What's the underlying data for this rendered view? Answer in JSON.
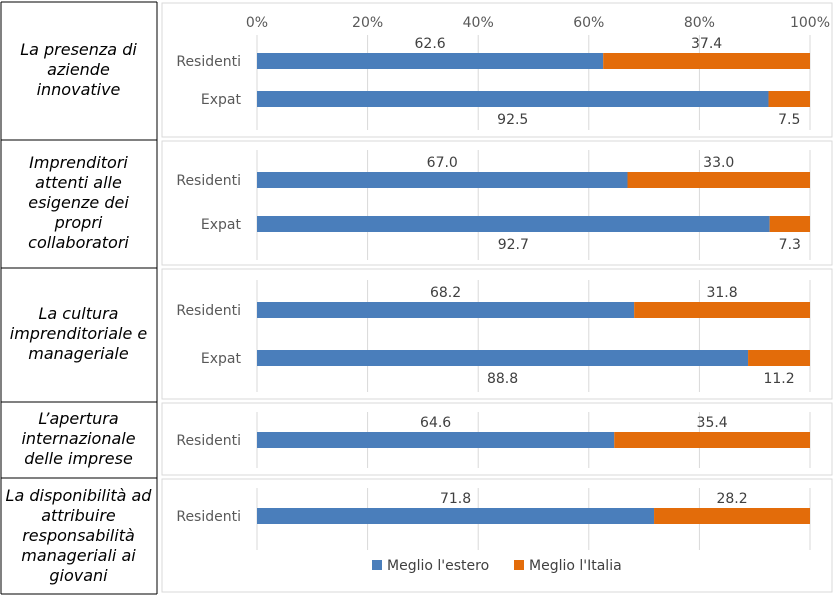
{
  "colors": {
    "estero": "#4a7ebb",
    "italia": "#e36c0a",
    "grid": "#d9d9d9",
    "axis": "#bfbfbf"
  },
  "categories": [
    "La presenza di aziende innovative",
    "Imprenditori attenti alle esigenze dei propri collaboratori",
    "La cultura imprenditoriale e manageriale",
    "L’apertura internazionale delle imprese",
    "La disponibilità ad attribuire responsabilità manageriali ai giovani"
  ],
  "chart_data": {
    "type": "bar",
    "orientation": "horizontal",
    "stacked": true,
    "x_ticks": [
      "0%",
      "20%",
      "40%",
      "60%",
      "80%",
      "100%"
    ],
    "xlim": [
      0,
      100
    ],
    "legend_position": "bottom",
    "series_names": [
      "Meglio l'estero",
      "Meglio l'Italia"
    ],
    "groups": [
      {
        "bars": [
          {
            "label": "Residenti",
            "estero": 62.6,
            "italia": 37.4,
            "estero_label": "62.6",
            "italia_label": "37.4"
          },
          {
            "label": "Expat",
            "estero": 92.5,
            "italia": 7.5,
            "estero_label": "92.5",
            "italia_label": "7.5"
          }
        ]
      },
      {
        "bars": [
          {
            "label": "Residenti",
            "estero": 67.0,
            "italia": 33.0,
            "estero_label": "67.0",
            "italia_label": "33.0"
          },
          {
            "label": "Expat",
            "estero": 92.7,
            "italia": 7.3,
            "estero_label": "92.7",
            "italia_label": "7.3"
          }
        ]
      },
      {
        "bars": [
          {
            "label": "Residenti",
            "estero": 68.2,
            "italia": 31.8,
            "estero_label": "68.2",
            "italia_label": "31.8"
          },
          {
            "label": "Expat",
            "estero": 88.8,
            "italia": 11.2,
            "estero_label": "88.8",
            "italia_label": "11.2"
          }
        ]
      },
      {
        "bars": [
          {
            "label": "Residenti",
            "estero": 64.6,
            "italia": 35.4,
            "estero_label": "64.6",
            "italia_label": "35.4"
          }
        ]
      },
      {
        "bars": [
          {
            "label": "Residenti",
            "estero": 71.8,
            "italia": 28.2,
            "estero_label": "71.8",
            "italia_label": "28.2"
          }
        ]
      }
    ]
  }
}
